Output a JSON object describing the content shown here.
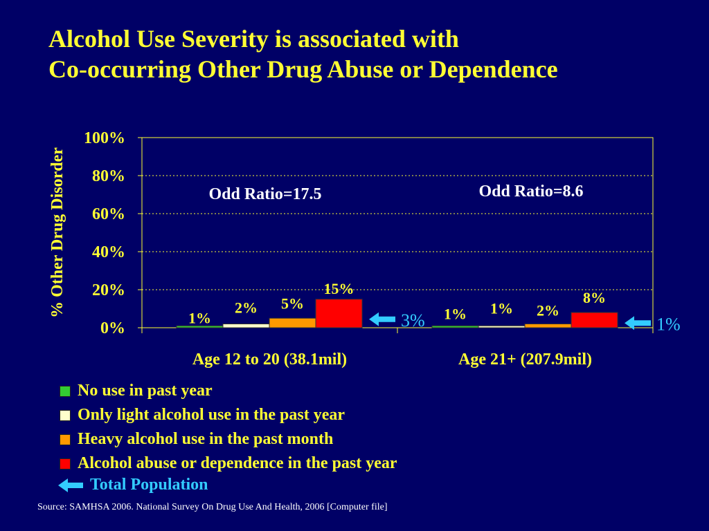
{
  "title": {
    "line1": "Alcohol Use Severity is associated with",
    "line2": "Co-occurring Other Drug Abuse or Dependence"
  },
  "colors": {
    "background": "#000066",
    "title": "#FFFF33",
    "total": "#33CCFF",
    "grid": "#FFFF33"
  },
  "chart_data": {
    "type": "bar",
    "ylabel": "% Other Drug Disorder",
    "ylim": [
      0,
      100
    ],
    "yticks": [
      "0%",
      "20%",
      "40%",
      "60%",
      "80%",
      "100%"
    ],
    "grid": true,
    "categories": [
      "Age 12 to 20 (38.1mil)",
      "Age 21+ (207.9mil)"
    ],
    "series": [
      {
        "name": "No use in past year",
        "color": "#33CC33",
        "values": [
          1,
          1
        ],
        "labels": [
          "1%",
          "1%"
        ]
      },
      {
        "name": "Only light alcohol use in the past year",
        "color": "#FFFFCC",
        "values": [
          2,
          1
        ],
        "labels": [
          "2%",
          "1%"
        ]
      },
      {
        "name": "Heavy alcohol use in the past month",
        "color": "#FF9900",
        "values": [
          5,
          2
        ],
        "labels": [
          "5%",
          "2%"
        ]
      },
      {
        "name": "Alcohol abuse or dependence in the past year",
        "color": "#FF0000",
        "values": [
          15,
          8
        ],
        "labels": [
          "15%",
          "8%"
        ]
      }
    ],
    "total_population": {
      "name": "Total Population",
      "values": [
        3,
        1
      ],
      "labels": [
        "3%",
        "1%"
      ]
    },
    "annotations": [
      "Odd Ratio=17.5",
      "Odd Ratio=8.6"
    ]
  },
  "source": "Source:  SAMHSA 2006. National Survey On Drug Use And Health, 2006 [Computer file]"
}
